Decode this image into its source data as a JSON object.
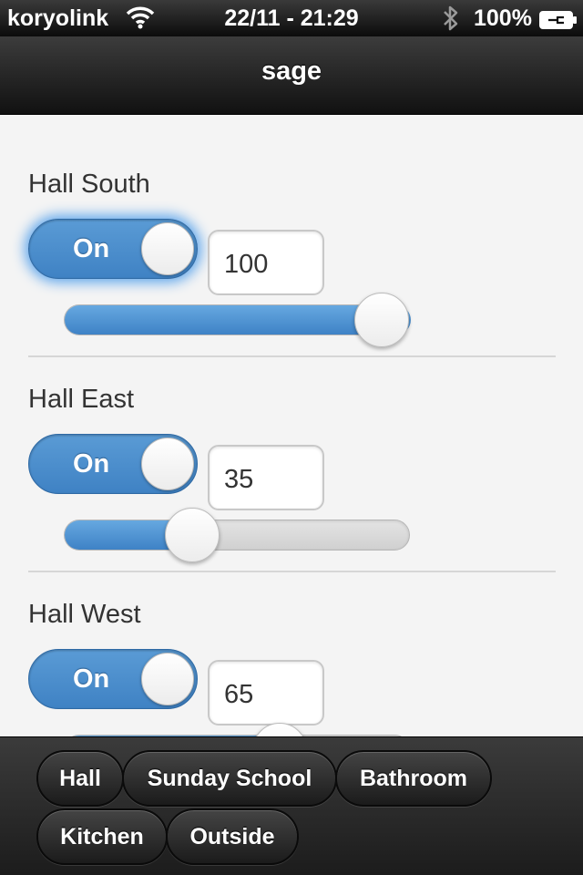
{
  "status_bar": {
    "carrier": "koryolink",
    "wifi_icon": "wifi-icon",
    "time": "22/11 - 21:29",
    "bluetooth_icon": "bluetooth-icon",
    "battery_percent": "100%",
    "battery_icon": "battery-charging-icon"
  },
  "header": {
    "title": "sage"
  },
  "lights": [
    {
      "name": "Hall South",
      "toggle_label": "On",
      "value": "100",
      "level": 100
    },
    {
      "name": "Hall East",
      "toggle_label": "On",
      "value": "35",
      "level": 35
    },
    {
      "name": "Hall West",
      "toggle_label": "On",
      "value": "65",
      "level": 65
    }
  ],
  "nav": {
    "items": [
      {
        "label": "Hall"
      },
      {
        "label": "Sunday School"
      },
      {
        "label": "Bathroom"
      },
      {
        "label": "Kitchen"
      },
      {
        "label": "Outside"
      }
    ]
  },
  "colors": {
    "accent": "#3f82c4",
    "focus_glow": "#5fa6ec",
    "bar_dark": "#111111"
  }
}
